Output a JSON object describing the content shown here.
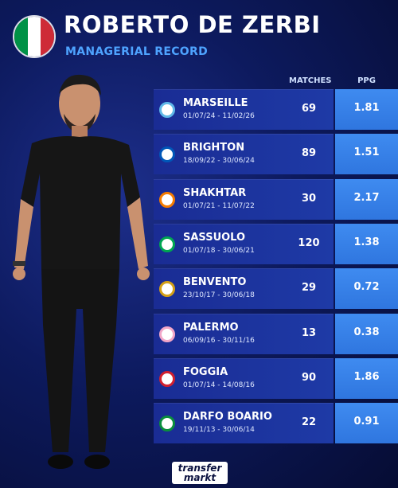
{
  "header": {
    "title": "ROBERTO DE ZERBI",
    "subtitle": "MANAGERIAL RECORD",
    "flag_colors": [
      "#009246",
      "#ffffff",
      "#ce2b37"
    ]
  },
  "columns": {
    "matches": "MATCHES",
    "ppg": "PPG"
  },
  "clubs": [
    {
      "name": "MARSEILLE",
      "dates": "01/07/24 - 11/02/26",
      "matches": "69",
      "ppg": "1.81",
      "icon": "marseille-crest-icon",
      "color": "#5fb8e8"
    },
    {
      "name": "BRIGHTON",
      "dates": "18/09/22 - 30/06/24",
      "matches": "89",
      "ppg": "1.51",
      "icon": "brighton-crest-icon",
      "color": "#0057b8"
    },
    {
      "name": "SHAKHTAR",
      "dates": "01/07/21 - 11/07/22",
      "matches": "30",
      "ppg": "2.17",
      "icon": "shakhtar-crest-icon",
      "color": "#f57c00"
    },
    {
      "name": "SASSUOLO",
      "dates": "01/07/18 - 30/06/21",
      "matches": "120",
      "ppg": "1.38",
      "icon": "sassuolo-crest-icon",
      "color": "#00a651"
    },
    {
      "name": "BENVENTO",
      "dates": "23/10/17 - 30/06/18",
      "matches": "29",
      "ppg": "0.72",
      "icon": "benevento-crest-icon",
      "color": "#d4a017"
    },
    {
      "name": "PALERMO",
      "dates": "06/09/16 - 30/11/16",
      "matches": "13",
      "ppg": "0.38",
      "icon": "palermo-crest-icon",
      "color": "#f2a6c8"
    },
    {
      "name": "FOGGIA",
      "dates": "01/07/14 - 14/08/16",
      "matches": "90",
      "ppg": "1.86",
      "icon": "foggia-crest-icon",
      "color": "#d2202f"
    },
    {
      "name": "DARFO BOARIO",
      "dates": "19/11/13 - 30/06/14",
      "matches": "22",
      "ppg": "0.91",
      "icon": "darfo-boario-crest-icon",
      "color": "#0a8f3c"
    }
  ],
  "footer": {
    "logo_line1": "transfer",
    "logo_line2": "markt"
  }
}
